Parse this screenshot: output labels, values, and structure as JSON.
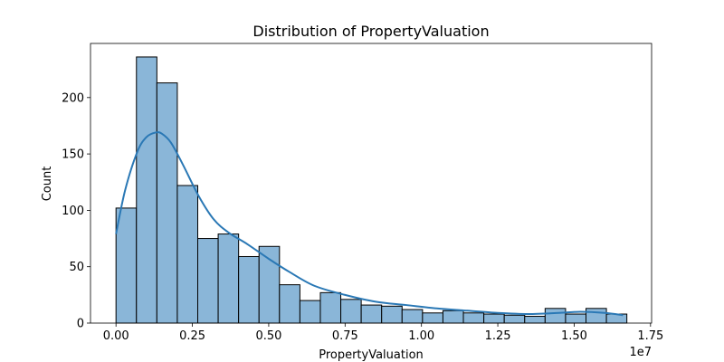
{
  "chart_data": {
    "type": "bar",
    "title": "Distribution of PropertyValuation",
    "xlabel": "PropertyValuation",
    "ylabel": "Count",
    "x_scale_label": "1e7",
    "xlim": [
      -0.0835,
      1.7535
    ],
    "ylim": [
      0,
      248
    ],
    "x_ticks": [
      0.0,
      0.25,
      0.5,
      0.75,
      1.0,
      1.25,
      1.5,
      1.75
    ],
    "x_tick_labels": [
      "0.00",
      "0.25",
      "0.50",
      "0.75",
      "1.00",
      "1.25",
      "1.50",
      "1.75"
    ],
    "y_ticks": [
      0,
      50,
      100,
      150,
      200
    ],
    "y_tick_labels": [
      "0",
      "50",
      "100",
      "150",
      "200"
    ],
    "bin_edges": [
      0.0,
      0.0669,
      0.1338,
      0.2007,
      0.2676,
      0.3345,
      0.4014,
      0.4683,
      0.5352,
      0.6021,
      0.669,
      0.7359,
      0.8028,
      0.8697,
      0.9366,
      1.0035,
      1.0704,
      1.1373,
      1.2042,
      1.2711,
      1.338,
      1.4049,
      1.4718,
      1.5387,
      1.6056,
      1.6725
    ],
    "counts": [
      102,
      236,
      213,
      122,
      75,
      79,
      59,
      68,
      34,
      20,
      27,
      21,
      16,
      15,
      12,
      9,
      11,
      9,
      8,
      7,
      6,
      13,
      8,
      13,
      8
    ],
    "bar_color": "#8ab6d8",
    "bar_edge_color": "#000000",
    "kde": {
      "color": "#2a78b5",
      "x": [
        0.0,
        0.03,
        0.07,
        0.1,
        0.13,
        0.15,
        0.18,
        0.22,
        0.27,
        0.32,
        0.37,
        0.43,
        0.5,
        0.57,
        0.65,
        0.75,
        0.85,
        0.95,
        1.05,
        1.15,
        1.25,
        1.35,
        1.45,
        1.52,
        1.6,
        1.66
      ],
      "y": [
        79,
        118,
        152,
        165,
        169,
        168,
        160,
        140,
        113,
        92,
        80,
        70,
        57,
        45,
        33,
        25,
        19,
        16,
        13,
        11,
        9,
        8,
        9,
        10,
        9,
        7
      ]
    },
    "grid": false,
    "legend": "none"
  }
}
